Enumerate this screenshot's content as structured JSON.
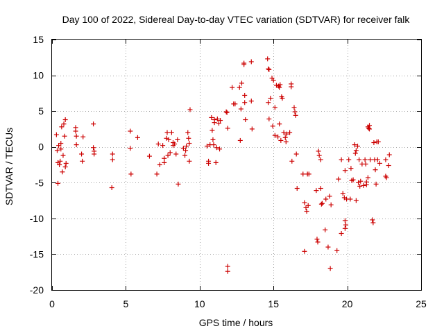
{
  "chart_data": {
    "type": "scatter",
    "title": "Day 100 of 2022, Sidereal Day-to-day VTEC variation (SDTVAR) for receiver falk",
    "xlabel": "GPS time / hours",
    "ylabel": "SDTVAR / TECUs",
    "xlim": [
      0,
      25
    ],
    "ylim": [
      -20,
      15
    ],
    "xticks": [
      0,
      5,
      10,
      15,
      20,
      25
    ],
    "yticks": [
      -20,
      -15,
      -10,
      -5,
      0,
      5,
      10,
      15
    ],
    "grid": true,
    "marker": "plus",
    "color": "#cc0000",
    "series": [
      {
        "name": "SDTVAR",
        "points": [
          [
            0.3,
            1.7
          ],
          [
            0.35,
            -0.5
          ],
          [
            0.4,
            -2.2
          ],
          [
            0.4,
            -5.1
          ],
          [
            0.45,
            0.2
          ],
          [
            0.5,
            -2.5
          ],
          [
            0.55,
            -2.0
          ],
          [
            0.6,
            0.5
          ],
          [
            0.6,
            -0.3
          ],
          [
            0.65,
            2.8
          ],
          [
            0.7,
            -3.5
          ],
          [
            0.75,
            -1.2
          ],
          [
            0.8,
            3.2
          ],
          [
            0.85,
            1.5
          ],
          [
            0.9,
            -2.8
          ],
          [
            0.9,
            3.8
          ],
          [
            0.95,
            -2.3
          ],
          [
            1.6,
            2.7
          ],
          [
            1.6,
            2.2
          ],
          [
            1.65,
            1.5
          ],
          [
            1.65,
            0.3
          ],
          [
            2.0,
            -1.0
          ],
          [
            2.05,
            -2.0
          ],
          [
            2.1,
            1.4
          ],
          [
            2.8,
            3.2
          ],
          [
            2.8,
            -0.1
          ],
          [
            2.85,
            -1.0
          ],
          [
            2.85,
            -0.6
          ],
          [
            4.1,
            -1.0
          ],
          [
            4.1,
            -1.8
          ],
          [
            4.05,
            -5.7
          ],
          [
            5.3,
            2.2
          ],
          [
            5.3,
            -0.2
          ],
          [
            5.35,
            -3.8
          ],
          [
            5.8,
            1.3
          ],
          [
            6.6,
            -1.3
          ],
          [
            7.1,
            -3.8
          ],
          [
            7.2,
            0.4
          ],
          [
            7.3,
            -2.5
          ],
          [
            7.5,
            0.2
          ],
          [
            7.6,
            -1.6
          ],
          [
            7.6,
            -2.2
          ],
          [
            7.75,
            1.2
          ],
          [
            7.8,
            2.0
          ],
          [
            7.85,
            -1.2
          ],
          [
            7.9,
            1.0
          ],
          [
            8.0,
            -0.8
          ],
          [
            8.1,
            2.0
          ],
          [
            8.2,
            0.6
          ],
          [
            8.2,
            0.2
          ],
          [
            8.3,
            0.4
          ],
          [
            8.4,
            -1.0
          ],
          [
            8.5,
            1.0
          ],
          [
            8.55,
            -5.2
          ],
          [
            8.9,
            -0.2
          ],
          [
            9.0,
            -1.2
          ],
          [
            9.05,
            -0.5
          ],
          [
            9.1,
            0.1
          ],
          [
            9.2,
            2.0
          ],
          [
            9.25,
            1.2
          ],
          [
            9.3,
            -2.0
          ],
          [
            9.3,
            0.5
          ],
          [
            9.35,
            5.2
          ],
          [
            10.5,
            0.1
          ],
          [
            10.6,
            -2.0
          ],
          [
            10.6,
            -2.3
          ],
          [
            10.7,
            0.3
          ],
          [
            10.8,
            4.1
          ],
          [
            10.85,
            2.3
          ],
          [
            10.9,
            1.0
          ],
          [
            10.95,
            0.3
          ],
          [
            11.0,
            3.8
          ],
          [
            11.0,
            3.4
          ],
          [
            11.1,
            -2.2
          ],
          [
            11.15,
            -0.1
          ],
          [
            11.2,
            3.9
          ],
          [
            11.3,
            3.3
          ],
          [
            11.35,
            -0.3
          ],
          [
            11.4,
            3.7
          ],
          [
            11.8,
            4.9
          ],
          [
            11.85,
            4.8
          ],
          [
            11.9,
            2.6
          ],
          [
            11.9,
            -16.7
          ],
          [
            11.9,
            -17.4
          ],
          [
            12.2,
            8.3
          ],
          [
            12.3,
            6.0
          ],
          [
            12.4,
            6.0
          ],
          [
            12.7,
            8.3
          ],
          [
            12.75,
            0.9
          ],
          [
            12.8,
            5.3
          ],
          [
            12.85,
            8.9
          ],
          [
            13.0,
            11.7
          ],
          [
            13.0,
            11.5
          ],
          [
            13.05,
            7.2
          ],
          [
            13.05,
            6.2
          ],
          [
            13.1,
            3.8
          ],
          [
            13.5,
            6.4
          ],
          [
            13.55,
            2.5
          ],
          [
            13.5,
            11.9
          ],
          [
            14.6,
            12.3
          ],
          [
            14.65,
            10.9
          ],
          [
            14.7,
            10.8
          ],
          [
            14.65,
            6.2
          ],
          [
            14.7,
            3.9
          ],
          [
            14.8,
            6.8
          ],
          [
            14.9,
            9.6
          ],
          [
            14.95,
            2.9
          ],
          [
            15.0,
            9.3
          ],
          [
            15.1,
            5.5
          ],
          [
            15.1,
            1.6
          ],
          [
            15.2,
            8.6
          ],
          [
            15.3,
            1.4
          ],
          [
            15.35,
            8.5
          ],
          [
            15.4,
            8.3
          ],
          [
            15.4,
            3.2
          ],
          [
            15.45,
            8.7
          ],
          [
            15.5,
            0.9
          ],
          [
            15.55,
            7.0
          ],
          [
            15.6,
            6.8
          ],
          [
            15.7,
            2.0
          ],
          [
            15.8,
            1.3
          ],
          [
            15.85,
            0.7
          ],
          [
            15.9,
            1.8
          ],
          [
            16.1,
            2.0
          ],
          [
            16.2,
            8.8
          ],
          [
            16.2,
            8.4
          ],
          [
            16.25,
            -2.0
          ],
          [
            16.4,
            5.5
          ],
          [
            16.45,
            4.9
          ],
          [
            16.5,
            4.4
          ],
          [
            16.55,
            -1.0
          ],
          [
            16.6,
            -5.8
          ],
          [
            17.0,
            -3.8
          ],
          [
            17.1,
            -14.6
          ],
          [
            17.1,
            -7.8
          ],
          [
            17.2,
            -8.5
          ],
          [
            17.25,
            -9.0
          ],
          [
            17.3,
            -3.8
          ],
          [
            17.35,
            -8.2
          ],
          [
            17.4,
            -3.8
          ],
          [
            17.9,
            -6.1
          ],
          [
            17.95,
            -12.9
          ],
          [
            18.0,
            -13.3
          ],
          [
            18.05,
            -0.6
          ],
          [
            18.1,
            -1.2
          ],
          [
            18.2,
            -1.8
          ],
          [
            18.2,
            -5.8
          ],
          [
            18.25,
            -8.0
          ],
          [
            18.3,
            -7.9
          ],
          [
            18.5,
            -11.6
          ],
          [
            18.55,
            -7.3
          ],
          [
            18.7,
            -14.0
          ],
          [
            18.8,
            -6.9
          ],
          [
            18.85,
            -17.0
          ],
          [
            18.9,
            -8.1
          ],
          [
            19.3,
            -14.5
          ],
          [
            19.4,
            -4.5
          ],
          [
            19.6,
            -1.8
          ],
          [
            19.6,
            -12.1
          ],
          [
            19.7,
            -6.5
          ],
          [
            19.8,
            -7.1
          ],
          [
            19.85,
            -10.3
          ],
          [
            19.9,
            -10.9
          ],
          [
            19.85,
            -11.4
          ],
          [
            19.85,
            -3.3
          ],
          [
            19.95,
            -7.3
          ],
          [
            20.1,
            -1.8
          ],
          [
            20.2,
            -7.3
          ],
          [
            20.25,
            -3.0
          ],
          [
            20.3,
            -4.7
          ],
          [
            20.4,
            -4.6
          ],
          [
            20.5,
            0.3
          ],
          [
            20.55,
            -0.9
          ],
          [
            20.6,
            -0.5
          ],
          [
            20.6,
            -7.5
          ],
          [
            20.7,
            0.1
          ],
          [
            20.75,
            -5.0
          ],
          [
            20.8,
            -1.8
          ],
          [
            20.85,
            -5.5
          ],
          [
            20.9,
            -4.8
          ],
          [
            21.0,
            -2.4
          ],
          [
            21.1,
            -5.4
          ],
          [
            21.2,
            -1.8
          ],
          [
            21.25,
            -2.4
          ],
          [
            21.3,
            -4.9
          ],
          [
            21.3,
            -5.3
          ],
          [
            21.4,
            -4.3
          ],
          [
            21.4,
            2.8
          ],
          [
            21.45,
            2.6
          ],
          [
            21.5,
            3.0
          ],
          [
            21.5,
            2.5
          ],
          [
            21.55,
            -1.8
          ],
          [
            21.7,
            -10.2
          ],
          [
            21.75,
            -10.6
          ],
          [
            21.8,
            0.6
          ],
          [
            21.85,
            -1.8
          ],
          [
            21.9,
            -3.2
          ],
          [
            21.95,
            -5.2
          ],
          [
            22.0,
            0.7
          ],
          [
            22.05,
            -1.8
          ],
          [
            22.1,
            0.7
          ],
          [
            22.2,
            -2.3
          ],
          [
            22.6,
            -1.8
          ],
          [
            22.6,
            -4.1
          ],
          [
            22.65,
            -4.3
          ],
          [
            22.8,
            -2.6
          ],
          [
            22.85,
            -1.1
          ]
        ]
      }
    ]
  }
}
